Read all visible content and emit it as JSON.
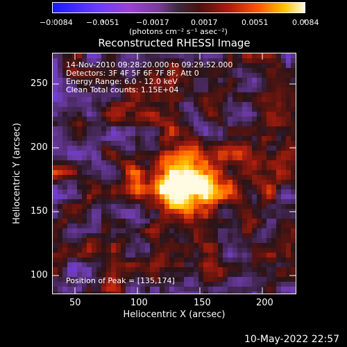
{
  "colorbar": {
    "tick_labels": [
      "−0.0084",
      "−0.0051",
      "−0.0017",
      "0.0017",
      "0.0051",
      "0.0084"
    ],
    "units": "(photons cm⁻² s⁻¹ asec⁻²)"
  },
  "plot": {
    "title": "Reconstructed RHESSI Image",
    "info_lines": [
      "14-Nov-2010 09:28:20.000 to 09:29:52.000",
      "Detectors: 3F 4F 5F 6F 7F 8F, Att 0",
      "Energy Range: 6.0 - 12.0 keV",
      "Clean     Total counts: 1.15E+04"
    ],
    "peak_label": "Position of Peak = [135,174]",
    "x_axis": {
      "label": "Heliocentric X (arcsec)",
      "tick_labels": [
        "50",
        "100",
        "150",
        "200"
      ]
    },
    "y_axis": {
      "label": "Heliocentric Y (arcsec)",
      "tick_labels": [
        "250",
        "200",
        "150",
        "100"
      ]
    }
  },
  "timestamp": "10-May-2022 22:57"
}
